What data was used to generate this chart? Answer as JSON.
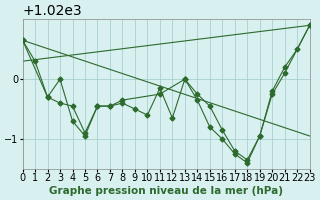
{
  "title": "Graphe pression niveau de la mer (hPa)",
  "background_color": "#d8f0f0",
  "grid_color": "#a0c8c8",
  "line_color": "#2d6a2d",
  "marker_color": "#2d6a2d",
  "xlim": [
    0,
    23
  ],
  "ylim": [
    1018.5,
    1021.0
  ],
  "yticks": [
    1019,
    1020
  ],
  "xticks": [
    0,
    1,
    2,
    3,
    4,
    5,
    6,
    7,
    8,
    9,
    10,
    11,
    12,
    13,
    14,
    15,
    16,
    17,
    18,
    19,
    20,
    21,
    22,
    23
  ],
  "series1": [
    1020.65,
    1020.3,
    1019.7,
    1019.6,
    1019.55,
    1019.1,
    1019.55,
    1019.55,
    1019.6,
    1019.5,
    1019.4,
    1019.85,
    1019.35,
    1020.0,
    1019.75,
    1019.55,
    1019.15,
    1018.8,
    1018.65,
    1019.05,
    1019.8,
    1020.2,
    1020.5,
    1020.9
  ],
  "series2_x": [
    0,
    2,
    3,
    4,
    5,
    6,
    7,
    8,
    11,
    13,
    14,
    15,
    16,
    17,
    18,
    19,
    20,
    21,
    23
  ],
  "series2_y": [
    1020.65,
    1019.7,
    1020.0,
    1019.3,
    1019.05,
    1019.55,
    1019.55,
    1019.65,
    1019.75,
    1020.0,
    1019.65,
    1019.2,
    1019.0,
    1018.75,
    1018.6,
    1019.05,
    1019.75,
    1020.1,
    1020.9
  ],
  "line1_x": [
    0,
    23
  ],
  "line1_y": [
    1020.65,
    1019.05
  ],
  "line2_x": [
    0,
    23
  ],
  "line2_y": [
    1020.3,
    1020.9
  ],
  "xlabel_fontsize": 7.5,
  "tick_fontsize": 7
}
